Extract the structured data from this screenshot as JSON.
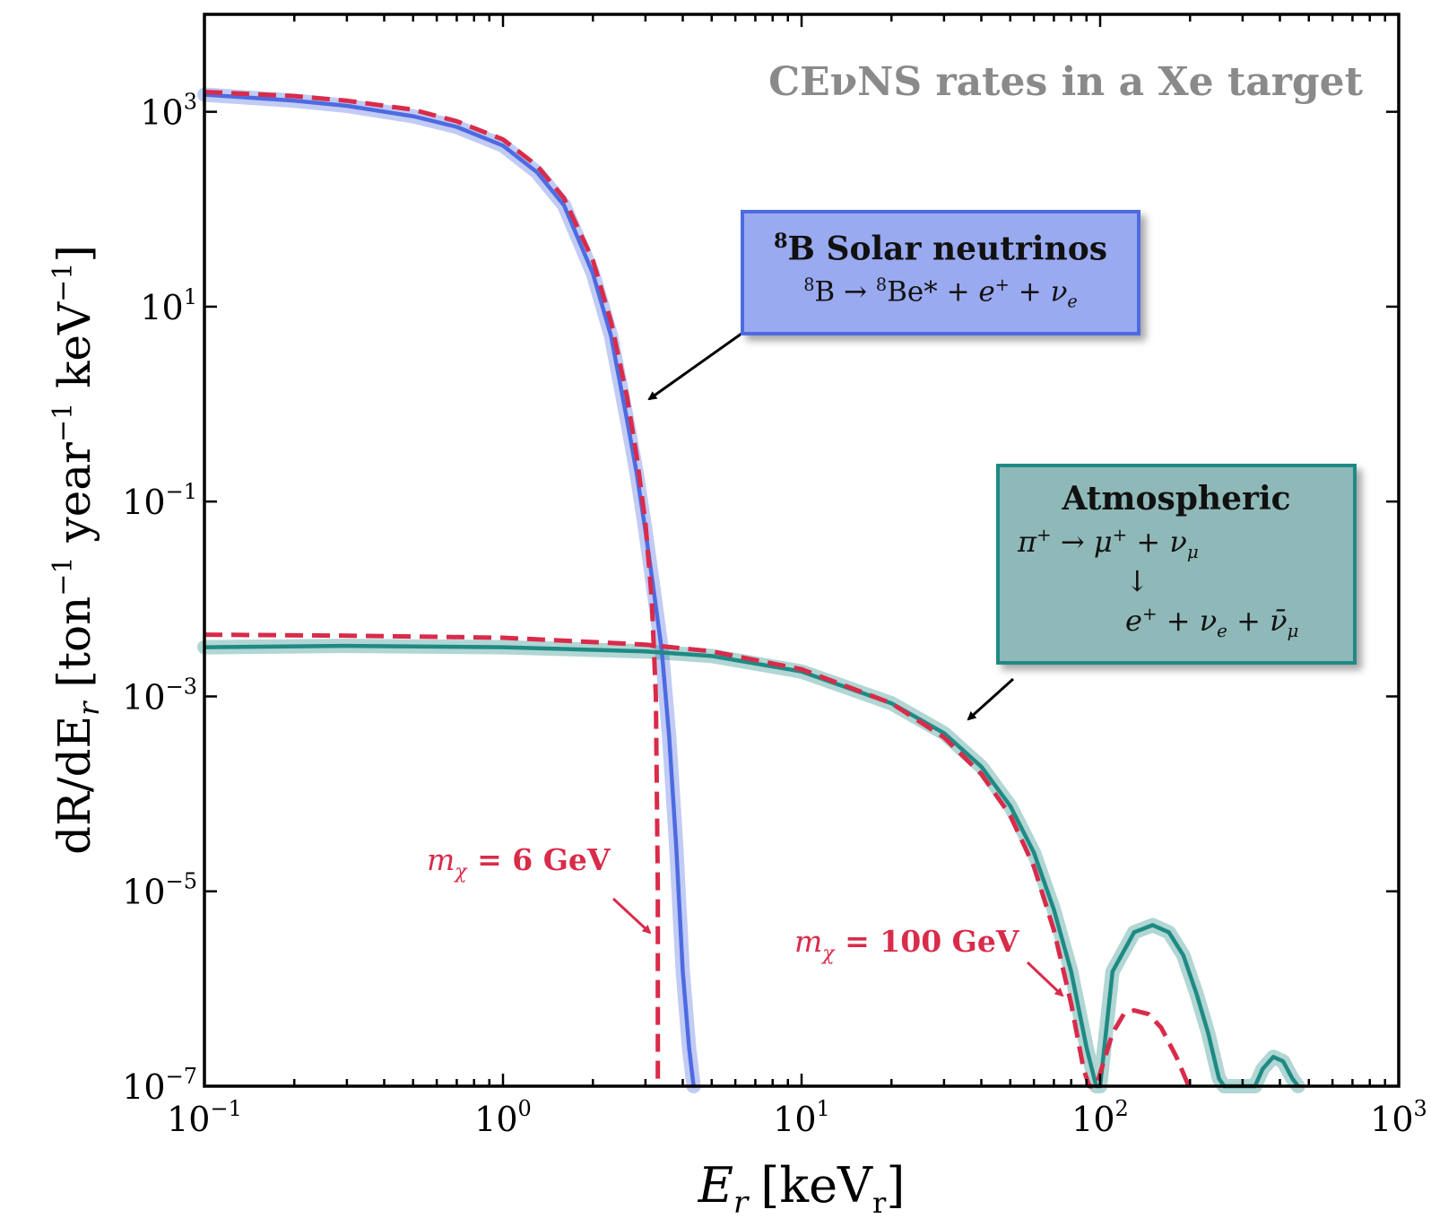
{
  "chart_data": {
    "type": "line",
    "title": "CEνNS rates in a Xe target",
    "xlabel": "E_r [keV_r]",
    "ylabel": "dR/dE_r [ton^-1 year^-1 keV^-1]",
    "xscale": "log",
    "yscale": "log",
    "xlim": [
      0.1,
      1000
    ],
    "ylim": [
      1e-07,
      10000.0
    ],
    "grid": false,
    "x_ticks": [
      {
        "value": 0.1,
        "base": "10",
        "exp": "−1"
      },
      {
        "value": 1,
        "base": "10",
        "exp": "0"
      },
      {
        "value": 10,
        "base": "10",
        "exp": "1"
      },
      {
        "value": 100,
        "base": "10",
        "exp": "2"
      },
      {
        "value": 1000,
        "base": "10",
        "exp": "3"
      }
    ],
    "y_ticks": [
      {
        "value": 1e-07,
        "base": "10",
        "exp": "−7"
      },
      {
        "value": 1e-05,
        "base": "10",
        "exp": "−5"
      },
      {
        "value": 0.001,
        "base": "10",
        "exp": "−3"
      },
      {
        "value": 0.1,
        "base": "10",
        "exp": "−1"
      },
      {
        "value": 10,
        "base": "10",
        "exp": "1"
      },
      {
        "value": 1000,
        "base": "10",
        "exp": "3"
      }
    ],
    "series": [
      {
        "name": "8B Solar neutrinos",
        "color": "#4d6be0",
        "style": "solid",
        "band": true,
        "x": [
          0.1,
          0.2,
          0.3,
          0.5,
          0.7,
          1.0,
          1.3,
          1.6,
          2.0,
          2.3,
          2.6,
          2.8,
          3.0,
          3.2,
          3.4,
          3.6,
          3.8,
          4.0,
          4.2,
          4.35
        ],
        "y": [
          1500,
          1300,
          1150,
          900,
          700,
          450,
          240,
          110,
          22,
          5,
          0.7,
          0.2,
          0.05,
          0.012,
          0.003,
          0.0004,
          3e-05,
          1.5e-06,
          2.5e-07,
          1e-07
        ]
      },
      {
        "name": "Atmospheric",
        "color": "#1f8a84",
        "style": "solid",
        "band": true,
        "x": [
          0.1,
          0.3,
          1,
          3,
          5,
          10,
          20,
          30,
          40,
          50,
          60,
          70,
          80,
          90,
          97,
          100,
          110,
          130,
          150,
          170,
          190,
          210,
          230,
          250,
          260,
          330,
          350,
          380,
          410,
          440,
          460
        ],
        "y": [
          0.0032,
          0.0033,
          0.0032,
          0.0029,
          0.0026,
          0.0018,
          0.00085,
          0.00042,
          0.00019,
          7.5e-05,
          2.5e-05,
          6.5e-06,
          1.5e-06,
          2.5e-07,
          1e-07,
          1e-07,
          1.5e-06,
          3.8e-06,
          4.5e-06,
          3.8e-06,
          2.2e-06,
          9e-07,
          3.5e-07,
          1.2e-07,
          1e-07,
          1e-07,
          1.5e-07,
          2e-07,
          1.8e-07,
          1.2e-07,
          1e-07
        ]
      },
      {
        "name": "m_χ = 6 GeV",
        "color": "#d92b4a",
        "style": "dashed",
        "band": false,
        "x": [
          0.1,
          0.2,
          0.3,
          0.5,
          0.7,
          1.0,
          1.3,
          1.6,
          2.0,
          2.3,
          2.6,
          2.8,
          3.0,
          3.15,
          3.25,
          3.3,
          3.3
        ],
        "y": [
          1600,
          1450,
          1300,
          1050,
          800,
          520,
          280,
          130,
          30,
          7,
          1.2,
          0.3,
          0.06,
          0.01,
          0.001,
          1e-05,
          1e-07
        ]
      },
      {
        "name": "m_χ = 100 GeV",
        "color": "#d92b4a",
        "style": "dashed",
        "band": false,
        "x": [
          0.1,
          0.3,
          1,
          3,
          5,
          10,
          20,
          30,
          40,
          50,
          60,
          70,
          80,
          88,
          92,
          97,
          110,
          120,
          130,
          145,
          160,
          180,
          198
        ],
        "y": [
          0.0043,
          0.0042,
          0.004,
          0.0034,
          0.0029,
          0.0019,
          0.00085,
          0.00038,
          0.00016,
          6e-05,
          1.8e-05,
          4e-06,
          7e-07,
          1.5e-07,
          1e-07,
          1e-07,
          3.5e-07,
          5.5e-07,
          6e-07,
          5.5e-07,
          4e-07,
          2e-07,
          1e-07
        ]
      }
    ],
    "annotations": [
      {
        "text": "m_χ = 6 GeV",
        "x": 3.25,
        "y": 3.5e-06
      },
      {
        "text": "m_χ = 100 GeV",
        "x": 85,
        "y": 6e-07
      }
    ]
  },
  "labels": {
    "title": "CEνNS rates in a Xe target",
    "xlabel_main": "E",
    "xlabel_sub": "r",
    "xlabel_unit": "[keV",
    "xlabel_unit_sub": "r",
    "xlabel_close": "]",
    "ylabel": "dR/dE",
    "ylabel_sub": "r",
    "ylabel_unit": " [ton",
    "ylabel_exp1": "−1",
    "ylabel_mid": " year",
    "ylabel_exp2": "−1",
    "ylabel_end": " keV",
    "ylabel_exp3": "−1",
    "ylabel_close": "]",
    "mchi6_a": "m",
    "mchi6_sub": "χ",
    "mchi6_b": " = 6 GeV",
    "mchi100_a": "m",
    "mchi100_sub": "χ",
    "mchi100_b": " = 100 GeV"
  },
  "solar_box": {
    "head_sup": "8",
    "head": "B Solar neutrinos",
    "eq_sup1": "8",
    "eq_a": "B → ",
    "eq_sup2": "8",
    "eq_b": "Be* + ",
    "eq_e": "e",
    "eq_eplus": "+",
    "eq_c": " + ",
    "eq_nu": "ν",
    "eq_nusub": "e"
  },
  "atm_box": {
    "head": "Atmospheric",
    "l1_pi": "π",
    "l1_pisup": "+",
    "l1_arrow": " → ",
    "l1_mu": "μ",
    "l1_musup": "+",
    "l1_plus": " + ",
    "l1_nu": "ν",
    "l1_nusub": "μ",
    "l2_arrow": "↓",
    "l3_e": "e",
    "l3_esup": "+",
    "l3_plus1": " + ",
    "l3_nu": "ν",
    "l3_nusub": "e",
    "l3_plus2": " + ",
    "l3_nubar": "ν̄",
    "l3_nubarsub": "μ"
  }
}
